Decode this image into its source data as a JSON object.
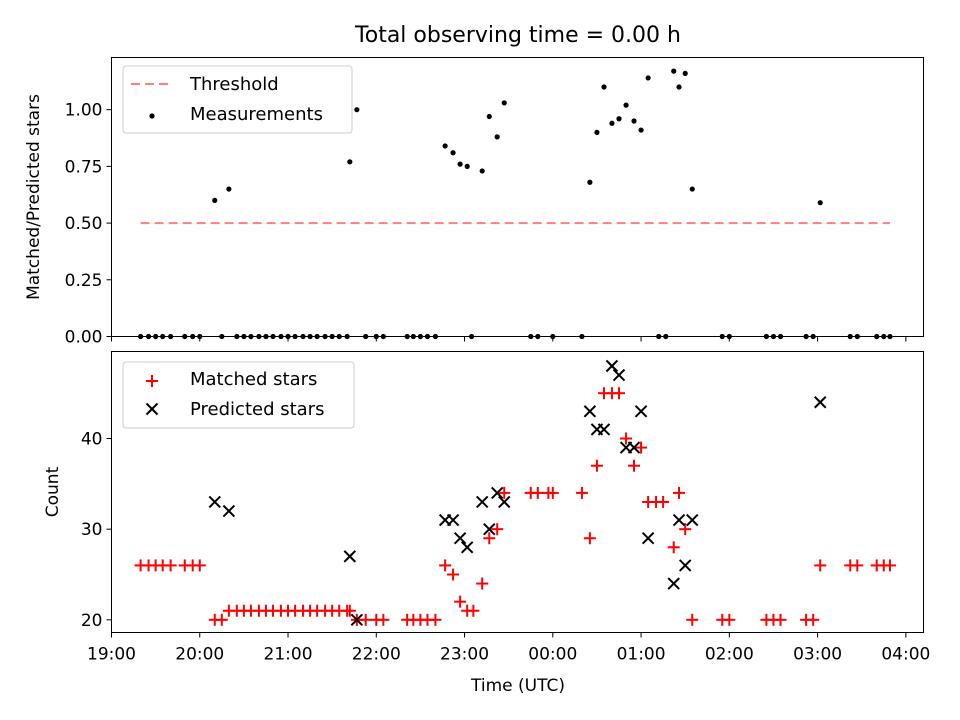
{
  "chart_data": [
    {
      "type": "scatter",
      "title": "Total observing time = 0.00 h",
      "xlabel": "",
      "ylabel": "Matched/Predicted stars",
      "ylim": [
        0,
        1.23
      ],
      "xlim": [
        19.0,
        28.2
      ],
      "y_ticks": [
        0.0,
        0.25,
        0.5,
        0.75,
        1.0
      ],
      "y_tick_labels": [
        "0.00",
        "0.25",
        "0.50",
        "0.75",
        "1.00"
      ],
      "legend_position": "top-left",
      "threshold": {
        "name": "Threshold",
        "value": 0.5,
        "x_range": [
          19.33,
          27.82
        ],
        "color": "#ff7f7f",
        "style": "dashed"
      },
      "series": [
        {
          "name": "Measurements",
          "marker": "dot",
          "color": "#000000",
          "points": [
            [
              19.33,
              0
            ],
            [
              19.42,
              0
            ],
            [
              19.5,
              0
            ],
            [
              19.58,
              0
            ],
            [
              19.67,
              0
            ],
            [
              19.83,
              0
            ],
            [
              19.92,
              0
            ],
            [
              20.0,
              0
            ],
            [
              20.17,
              0.6
            ],
            [
              20.25,
              0
            ],
            [
              20.33,
              0.65
            ],
            [
              20.42,
              0
            ],
            [
              20.5,
              0
            ],
            [
              20.58,
              0
            ],
            [
              20.67,
              0
            ],
            [
              20.75,
              0
            ],
            [
              20.83,
              0
            ],
            [
              20.92,
              0
            ],
            [
              21.0,
              0
            ],
            [
              21.08,
              0
            ],
            [
              21.17,
              0
            ],
            [
              21.25,
              0
            ],
            [
              21.33,
              0
            ],
            [
              21.42,
              0
            ],
            [
              21.5,
              0
            ],
            [
              21.58,
              0
            ],
            [
              21.67,
              0
            ],
            [
              21.7,
              0.77
            ],
            [
              21.78,
              1.0
            ],
            [
              21.88,
              0
            ],
            [
              22.0,
              0
            ],
            [
              22.08,
              0
            ],
            [
              22.35,
              0
            ],
            [
              22.42,
              0
            ],
            [
              22.5,
              0
            ],
            [
              22.58,
              0
            ],
            [
              22.67,
              0
            ],
            [
              22.78,
              0.84
            ],
            [
              22.87,
              0.81
            ],
            [
              22.95,
              0.76
            ],
            [
              23.03,
              0.75
            ],
            [
              23.08,
              0
            ],
            [
              23.2,
              0.73
            ],
            [
              23.28,
              0.97
            ],
            [
              23.37,
              0.88
            ],
            [
              23.45,
              1.03
            ],
            [
              23.75,
              0
            ],
            [
              23.83,
              0
            ],
            [
              24.0,
              0
            ],
            [
              24.33,
              0
            ],
            [
              24.42,
              0.68
            ],
            [
              24.5,
              0.9
            ],
            [
              24.58,
              1.1
            ],
            [
              24.67,
              0.94
            ],
            [
              24.75,
              0.96
            ],
            [
              24.83,
              1.02
            ],
            [
              24.92,
              0.95
            ],
            [
              25.0,
              0.91
            ],
            [
              25.08,
              1.14
            ],
            [
              25.2,
              0
            ],
            [
              25.28,
              0
            ],
            [
              25.37,
              1.17
            ],
            [
              25.43,
              1.1
            ],
            [
              25.5,
              1.16
            ],
            [
              25.58,
              0.65
            ],
            [
              25.92,
              0
            ],
            [
              26.0,
              0
            ],
            [
              26.42,
              0
            ],
            [
              26.5,
              0
            ],
            [
              26.58,
              0
            ],
            [
              26.87,
              0
            ],
            [
              26.95,
              0
            ],
            [
              27.03,
              0.59
            ],
            [
              27.37,
              0
            ],
            [
              27.45,
              0
            ],
            [
              27.67,
              0
            ],
            [
              27.75,
              0
            ],
            [
              27.82,
              0
            ]
          ]
        }
      ]
    },
    {
      "type": "scatter",
      "title": "",
      "xlabel": "Time (UTC)",
      "ylabel": "Count",
      "ylim": [
        18.6,
        49.6
      ],
      "xlim": [
        19.0,
        28.2
      ],
      "y_ticks": [
        20,
        30,
        40
      ],
      "y_tick_labels": [
        "20",
        "30",
        "40"
      ],
      "x_ticks": [
        19,
        20,
        21,
        22,
        23,
        24,
        25,
        26,
        27,
        28
      ],
      "x_tick_labels": [
        "19:00",
        "20:00",
        "21:00",
        "22:00",
        "23:00",
        "00:00",
        "01:00",
        "02:00",
        "03:00",
        "04:00"
      ],
      "legend_position": "top-left",
      "series": [
        {
          "name": "Matched stars",
          "marker": "plus",
          "color": "#ff0000",
          "points": [
            [
              19.33,
              26
            ],
            [
              19.42,
              26
            ],
            [
              19.5,
              26
            ],
            [
              19.58,
              26
            ],
            [
              19.67,
              26
            ],
            [
              19.83,
              26
            ],
            [
              19.92,
              26
            ],
            [
              20.0,
              26
            ],
            [
              20.17,
              20
            ],
            [
              20.25,
              20
            ],
            [
              20.33,
              21
            ],
            [
              20.42,
              21
            ],
            [
              20.5,
              21
            ],
            [
              20.58,
              21
            ],
            [
              20.67,
              21
            ],
            [
              20.75,
              21
            ],
            [
              20.83,
              21
            ],
            [
              20.92,
              21
            ],
            [
              21.0,
              21
            ],
            [
              21.08,
              21
            ],
            [
              21.17,
              21
            ],
            [
              21.25,
              21
            ],
            [
              21.33,
              21
            ],
            [
              21.42,
              21
            ],
            [
              21.5,
              21
            ],
            [
              21.58,
              21
            ],
            [
              21.67,
              21
            ],
            [
              21.7,
              21
            ],
            [
              21.78,
              20
            ],
            [
              21.88,
              20
            ],
            [
              22.0,
              20
            ],
            [
              22.08,
              20
            ],
            [
              22.35,
              20
            ],
            [
              22.42,
              20
            ],
            [
              22.5,
              20
            ],
            [
              22.58,
              20
            ],
            [
              22.67,
              20
            ],
            [
              22.78,
              26
            ],
            [
              22.87,
              25
            ],
            [
              22.95,
              22
            ],
            [
              23.03,
              21
            ],
            [
              23.1,
              21
            ],
            [
              23.2,
              24
            ],
            [
              23.28,
              29
            ],
            [
              23.37,
              30
            ],
            [
              23.45,
              34
            ],
            [
              23.75,
              34
            ],
            [
              23.83,
              34
            ],
            [
              23.95,
              34
            ],
            [
              24.0,
              34
            ],
            [
              24.33,
              34
            ],
            [
              24.42,
              29
            ],
            [
              24.5,
              37
            ],
            [
              24.58,
              45
            ],
            [
              24.67,
              45
            ],
            [
              24.75,
              45
            ],
            [
              24.83,
              40
            ],
            [
              24.92,
              37
            ],
            [
              25.0,
              39
            ],
            [
              25.08,
              33
            ],
            [
              25.17,
              33
            ],
            [
              25.25,
              33
            ],
            [
              25.37,
              28
            ],
            [
              25.43,
              34
            ],
            [
              25.5,
              30
            ],
            [
              25.58,
              20
            ],
            [
              25.92,
              20
            ],
            [
              26.0,
              20
            ],
            [
              26.42,
              20
            ],
            [
              26.5,
              20
            ],
            [
              26.58,
              20
            ],
            [
              26.87,
              20
            ],
            [
              26.95,
              20
            ],
            [
              27.03,
              26
            ],
            [
              27.37,
              26
            ],
            [
              27.45,
              26
            ],
            [
              27.67,
              26
            ],
            [
              27.75,
              26
            ],
            [
              27.82,
              26
            ]
          ]
        },
        {
          "name": "Predicted stars",
          "marker": "x",
          "color": "#000000",
          "points": [
            [
              20.17,
              33
            ],
            [
              20.33,
              32
            ],
            [
              21.7,
              27
            ],
            [
              21.78,
              20
            ],
            [
              22.78,
              31
            ],
            [
              22.87,
              31
            ],
            [
              22.95,
              29
            ],
            [
              23.03,
              28
            ],
            [
              23.2,
              33
            ],
            [
              23.28,
              30
            ],
            [
              23.37,
              34
            ],
            [
              23.45,
              33
            ],
            [
              24.42,
              43
            ],
            [
              24.5,
              41
            ],
            [
              24.58,
              41
            ],
            [
              24.67,
              48
            ],
            [
              24.75,
              47
            ],
            [
              24.83,
              39
            ],
            [
              24.92,
              39
            ],
            [
              25.0,
              43
            ],
            [
              25.08,
              29
            ],
            [
              25.37,
              24
            ],
            [
              25.43,
              31
            ],
            [
              25.5,
              26
            ],
            [
              25.58,
              31
            ],
            [
              27.03,
              44
            ]
          ]
        }
      ]
    }
  ]
}
